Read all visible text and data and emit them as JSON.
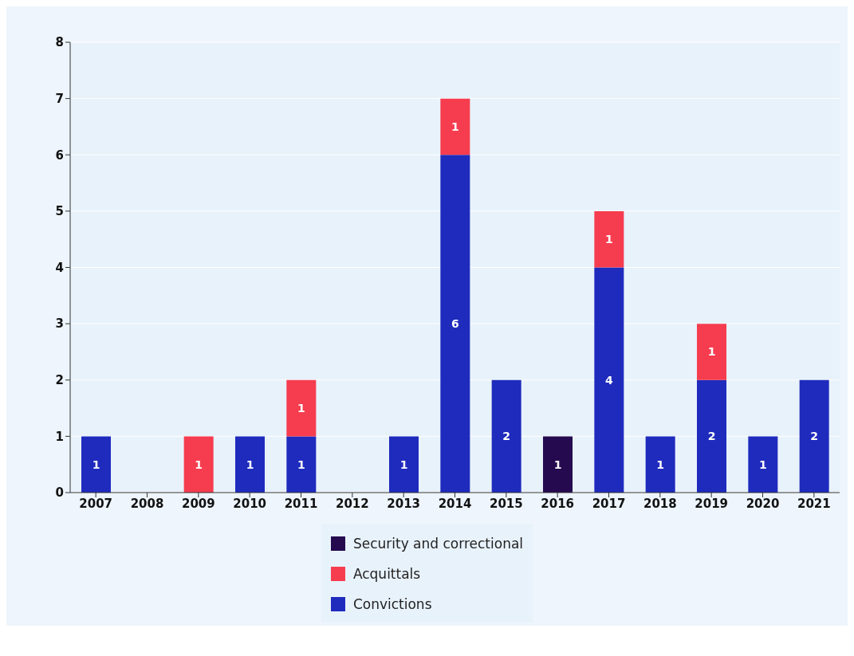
{
  "chart_data": {
    "type": "bar",
    "stacked": true,
    "categories": [
      "2007",
      "2008",
      "2009",
      "2010",
      "2011",
      "2012",
      "2013",
      "2014",
      "2015",
      "2016",
      "2017",
      "2018",
      "2019",
      "2020",
      "2021"
    ],
    "series": [
      {
        "name": "Convictions",
        "color": "#1f2bbd",
        "values": [
          1,
          null,
          null,
          1,
          1,
          null,
          1,
          6,
          2,
          null,
          4,
          1,
          2,
          1,
          2
        ]
      },
      {
        "name": "Acquittals",
        "color": "#f63d4f",
        "values": [
          null,
          null,
          1,
          null,
          1,
          null,
          null,
          1,
          null,
          null,
          1,
          null,
          1,
          null,
          null
        ]
      },
      {
        "name": "Security and correctional",
        "color": "#250a4f",
        "values": [
          null,
          null,
          null,
          null,
          null,
          null,
          null,
          null,
          null,
          1,
          null,
          null,
          null,
          null,
          null
        ]
      }
    ],
    "ylim": [
      0,
      8
    ],
    "yticks": [
      0,
      1,
      2,
      3,
      4,
      5,
      6,
      7,
      8
    ],
    "grid": "y",
    "legend": "bottom",
    "data_labels": true
  }
}
